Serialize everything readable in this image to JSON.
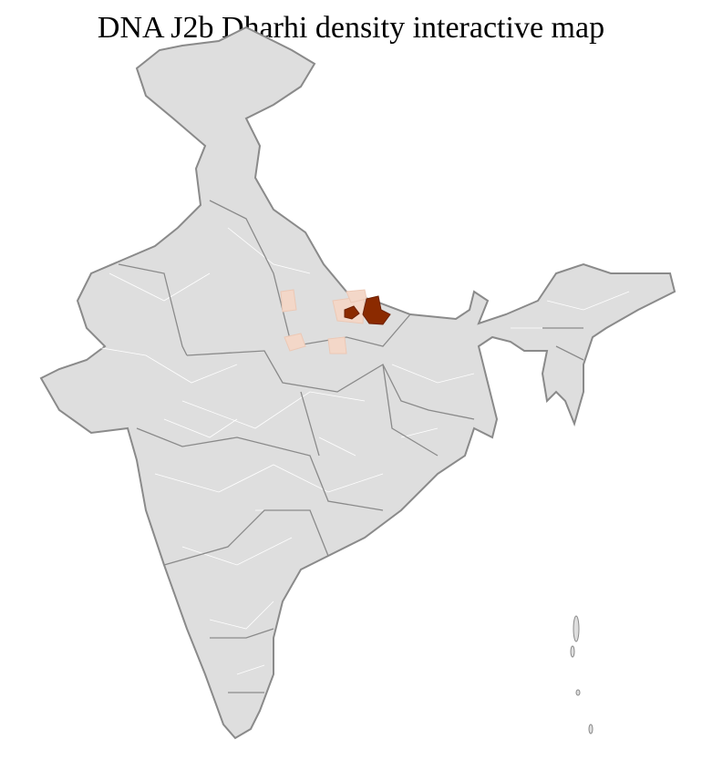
{
  "title": "DNA J2b Dharhi density interactive map",
  "colors": {
    "land": "#dedede",
    "district_border": "#ffffff",
    "state_border": "#8a8a8a",
    "high_density": "#8b2a00",
    "low_density": "#f3d7c8"
  },
  "highlighted_regions": [
    {
      "level": "high"
    },
    {
      "level": "high"
    },
    {
      "level": "low"
    },
    {
      "level": "low"
    },
    {
      "level": "low"
    },
    {
      "level": "low"
    },
    {
      "level": "low"
    }
  ]
}
